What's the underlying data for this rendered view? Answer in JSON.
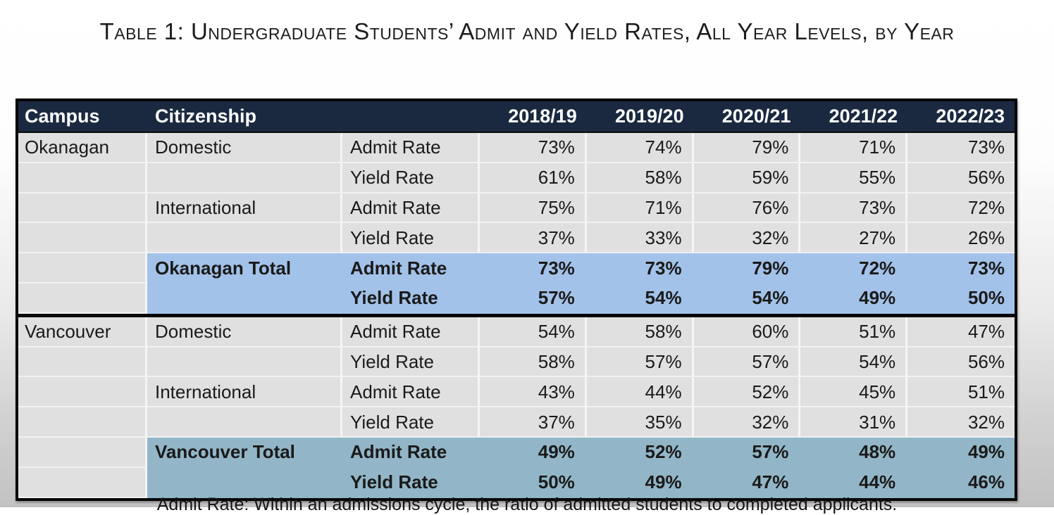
{
  "title": "Table 1: Undergraduate Students’ Admit and Yield Rates, All Year Levels, by Year",
  "table": {
    "columns": [
      "Campus",
      "Citizenship",
      "",
      "2018/19",
      "2019/20",
      "2020/21",
      "2021/22",
      "2022/23"
    ],
    "rows": [
      {
        "campus": "Okanagan",
        "citizenship": "Domestic",
        "rate": "Admit Rate",
        "values": [
          "73%",
          "74%",
          "79%",
          "71%",
          "73%"
        ],
        "style": "normal",
        "section_start": false
      },
      {
        "campus": "",
        "citizenship": "",
        "rate": "Yield Rate",
        "values": [
          "61%",
          "58%",
          "59%",
          "55%",
          "56%"
        ],
        "style": "normal",
        "section_start": false
      },
      {
        "campus": "",
        "citizenship": "International",
        "rate": "Admit Rate",
        "values": [
          "75%",
          "71%",
          "76%",
          "73%",
          "72%"
        ],
        "style": "normal",
        "section_start": false
      },
      {
        "campus": "",
        "citizenship": "",
        "rate": "Yield Rate",
        "values": [
          "37%",
          "33%",
          "32%",
          "27%",
          "26%"
        ],
        "style": "normal",
        "section_start": false
      },
      {
        "campus": "",
        "citizenship": "Okanagan Total",
        "rate": "Admit Rate",
        "values": [
          "73%",
          "73%",
          "79%",
          "72%",
          "73%"
        ],
        "style": "total-blue",
        "section_start": false
      },
      {
        "campus": "",
        "citizenship": "",
        "rate": "Yield Rate",
        "values": [
          "57%",
          "54%",
          "54%",
          "49%",
          "50%"
        ],
        "style": "total-blue",
        "section_start": false
      },
      {
        "campus": "Vancouver",
        "citizenship": "Domestic",
        "rate": "Admit Rate",
        "values": [
          "54%",
          "58%",
          "60%",
          "51%",
          "47%"
        ],
        "style": "normal",
        "section_start": true
      },
      {
        "campus": "",
        "citizenship": "",
        "rate": "Yield Rate",
        "values": [
          "58%",
          "57%",
          "57%",
          "54%",
          "56%"
        ],
        "style": "normal",
        "section_start": false
      },
      {
        "campus": "",
        "citizenship": "International",
        "rate": "Admit Rate",
        "values": [
          "43%",
          "44%",
          "52%",
          "45%",
          "51%"
        ],
        "style": "normal",
        "section_start": false
      },
      {
        "campus": "",
        "citizenship": "",
        "rate": "Yield Rate",
        "values": [
          "37%",
          "35%",
          "32%",
          "31%",
          "32%"
        ],
        "style": "normal",
        "section_start": false
      },
      {
        "campus": "",
        "citizenship": "Vancouver Total",
        "rate": "Admit Rate",
        "values": [
          "49%",
          "52%",
          "57%",
          "48%",
          "49%"
        ],
        "style": "total-teal",
        "section_start": false
      },
      {
        "campus": "",
        "citizenship": "",
        "rate": "Yield Rate",
        "values": [
          "50%",
          "49%",
          "47%",
          "44%",
          "46%"
        ],
        "style": "total-teal",
        "section_start": false
      }
    ]
  },
  "footnote": "Admit Rate: Within an admissions cycle, the ratio of admitted students to completed applicants.",
  "colors": {
    "header_bg": "#1a2940",
    "header_text": "#ffffff",
    "body_cell_bg": "#e0e0e0",
    "okanagan_total_bg": "#a3c2e9",
    "vancouver_total_bg": "#92b6c7",
    "table_border": "#060606"
  }
}
